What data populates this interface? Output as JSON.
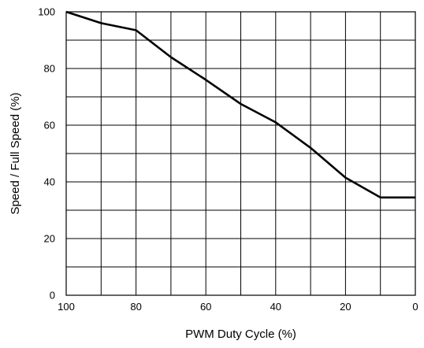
{
  "chart_data": {
    "type": "line",
    "title": "",
    "xlabel": "PWM Duty Cycle (%)",
    "ylabel": "Speed / Full Speed (%)",
    "xlim": [
      100,
      0
    ],
    "ylim": [
      0,
      100
    ],
    "x_reversed": true,
    "grid": true,
    "legend": "none",
    "x_ticks": [
      100,
      80,
      60,
      40,
      20,
      0
    ],
    "y_ticks": [
      0,
      20,
      40,
      60,
      80,
      100
    ],
    "x_tick_labels": [
      "100",
      "80",
      "60",
      "40",
      "20",
      "0"
    ],
    "y_tick_labels": [
      "0",
      "20",
      "40",
      "60",
      "80",
      "100"
    ],
    "series": [
      {
        "x": [
          100,
          90,
          80,
          70,
          60,
          50,
          40,
          30,
          20,
          10,
          0
        ],
        "y": [
          100,
          96,
          93.5,
          84,
          76,
          67.5,
          61,
          52,
          41.5,
          34.5,
          34.5
        ]
      }
    ],
    "colors": {
      "line": "#000000",
      "grid": "#000000",
      "axis": "#000000"
    }
  }
}
